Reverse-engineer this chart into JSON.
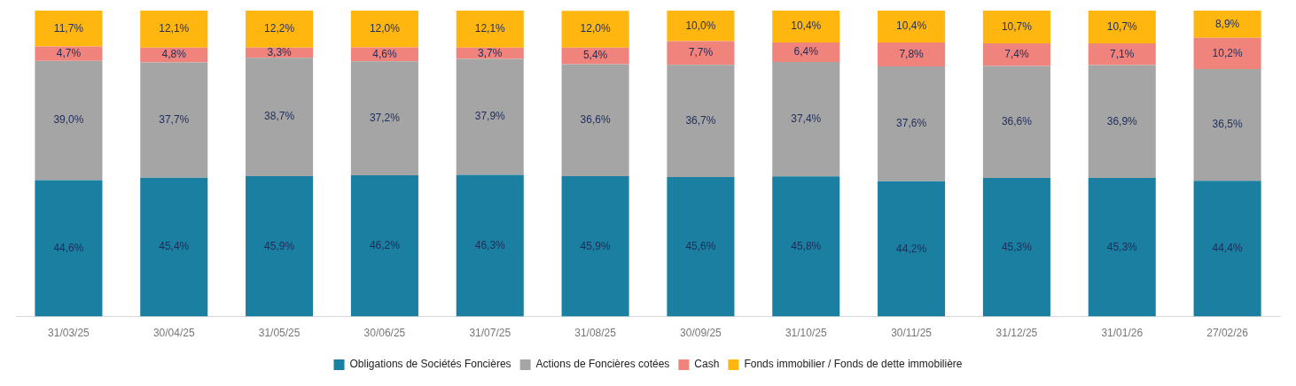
{
  "chart_data": {
    "type": "bar",
    "stacked": true,
    "legend": "bottom",
    "grid": false,
    "ylim": [
      0,
      100
    ],
    "tick_labels": "x",
    "categories": [
      "31/03/25",
      "30/04/25",
      "31/05/25",
      "30/06/25",
      "31/07/25",
      "31/08/25",
      "30/09/25",
      "31/10/25",
      "30/11/25",
      "31/12/25",
      "31/01/26",
      "27/02/26"
    ],
    "series": [
      {
        "name": "Obligations de Sociétés Foncières",
        "color": "#1a7fa0",
        "values": [
          44.6,
          45.4,
          45.9,
          46.2,
          46.3,
          45.9,
          45.6,
          45.8,
          44.2,
          45.3,
          45.3,
          44.4
        ],
        "value_labels": [
          "44,6%",
          "45,4%",
          "45,9%",
          "46,2%",
          "46,3%",
          "45,9%",
          "45,6%",
          "45,8%",
          "44,2%",
          "45,3%",
          "45,3%",
          "44,4%"
        ]
      },
      {
        "name": "Actions de Foncières cotées",
        "color": "#a5a5a5",
        "values": [
          39.0,
          37.7,
          38.7,
          37.2,
          37.9,
          36.6,
          36.7,
          37.4,
          37.6,
          36.6,
          36.9,
          36.5
        ],
        "value_labels": [
          "39,0%",
          "37,7%",
          "38,7%",
          "37,2%",
          "37,9%",
          "36,6%",
          "36,7%",
          "37,4%",
          "37,6%",
          "36,6%",
          "36,9%",
          "36,5%"
        ]
      },
      {
        "name": "Cash",
        "color": "#f0837b",
        "values": [
          4.7,
          4.8,
          3.3,
          4.6,
          3.7,
          5.4,
          7.7,
          6.4,
          7.8,
          7.4,
          7.1,
          10.2
        ],
        "value_labels": [
          "4,7%",
          "4,8%",
          "3,3%",
          "4,6%",
          "3,7%",
          "5,4%",
          "7,7%",
          "6,4%",
          "7,8%",
          "7,4%",
          "7,1%",
          "10,2%"
        ]
      },
      {
        "name": "Fonds immobilier / Fonds de dette immobilière",
        "color": "#ffb60f",
        "values": [
          11.7,
          12.1,
          12.2,
          12.0,
          12.1,
          12.0,
          10.0,
          10.4,
          10.4,
          10.7,
          10.7,
          8.9
        ],
        "value_labels": [
          "11,7%",
          "12,1%",
          "12,2%",
          "12,0%",
          "12,1%",
          "12,0%",
          "10,0%",
          "10,4%",
          "10,4%",
          "10,7%",
          "10,7%",
          "8,9%"
        ]
      }
    ]
  }
}
